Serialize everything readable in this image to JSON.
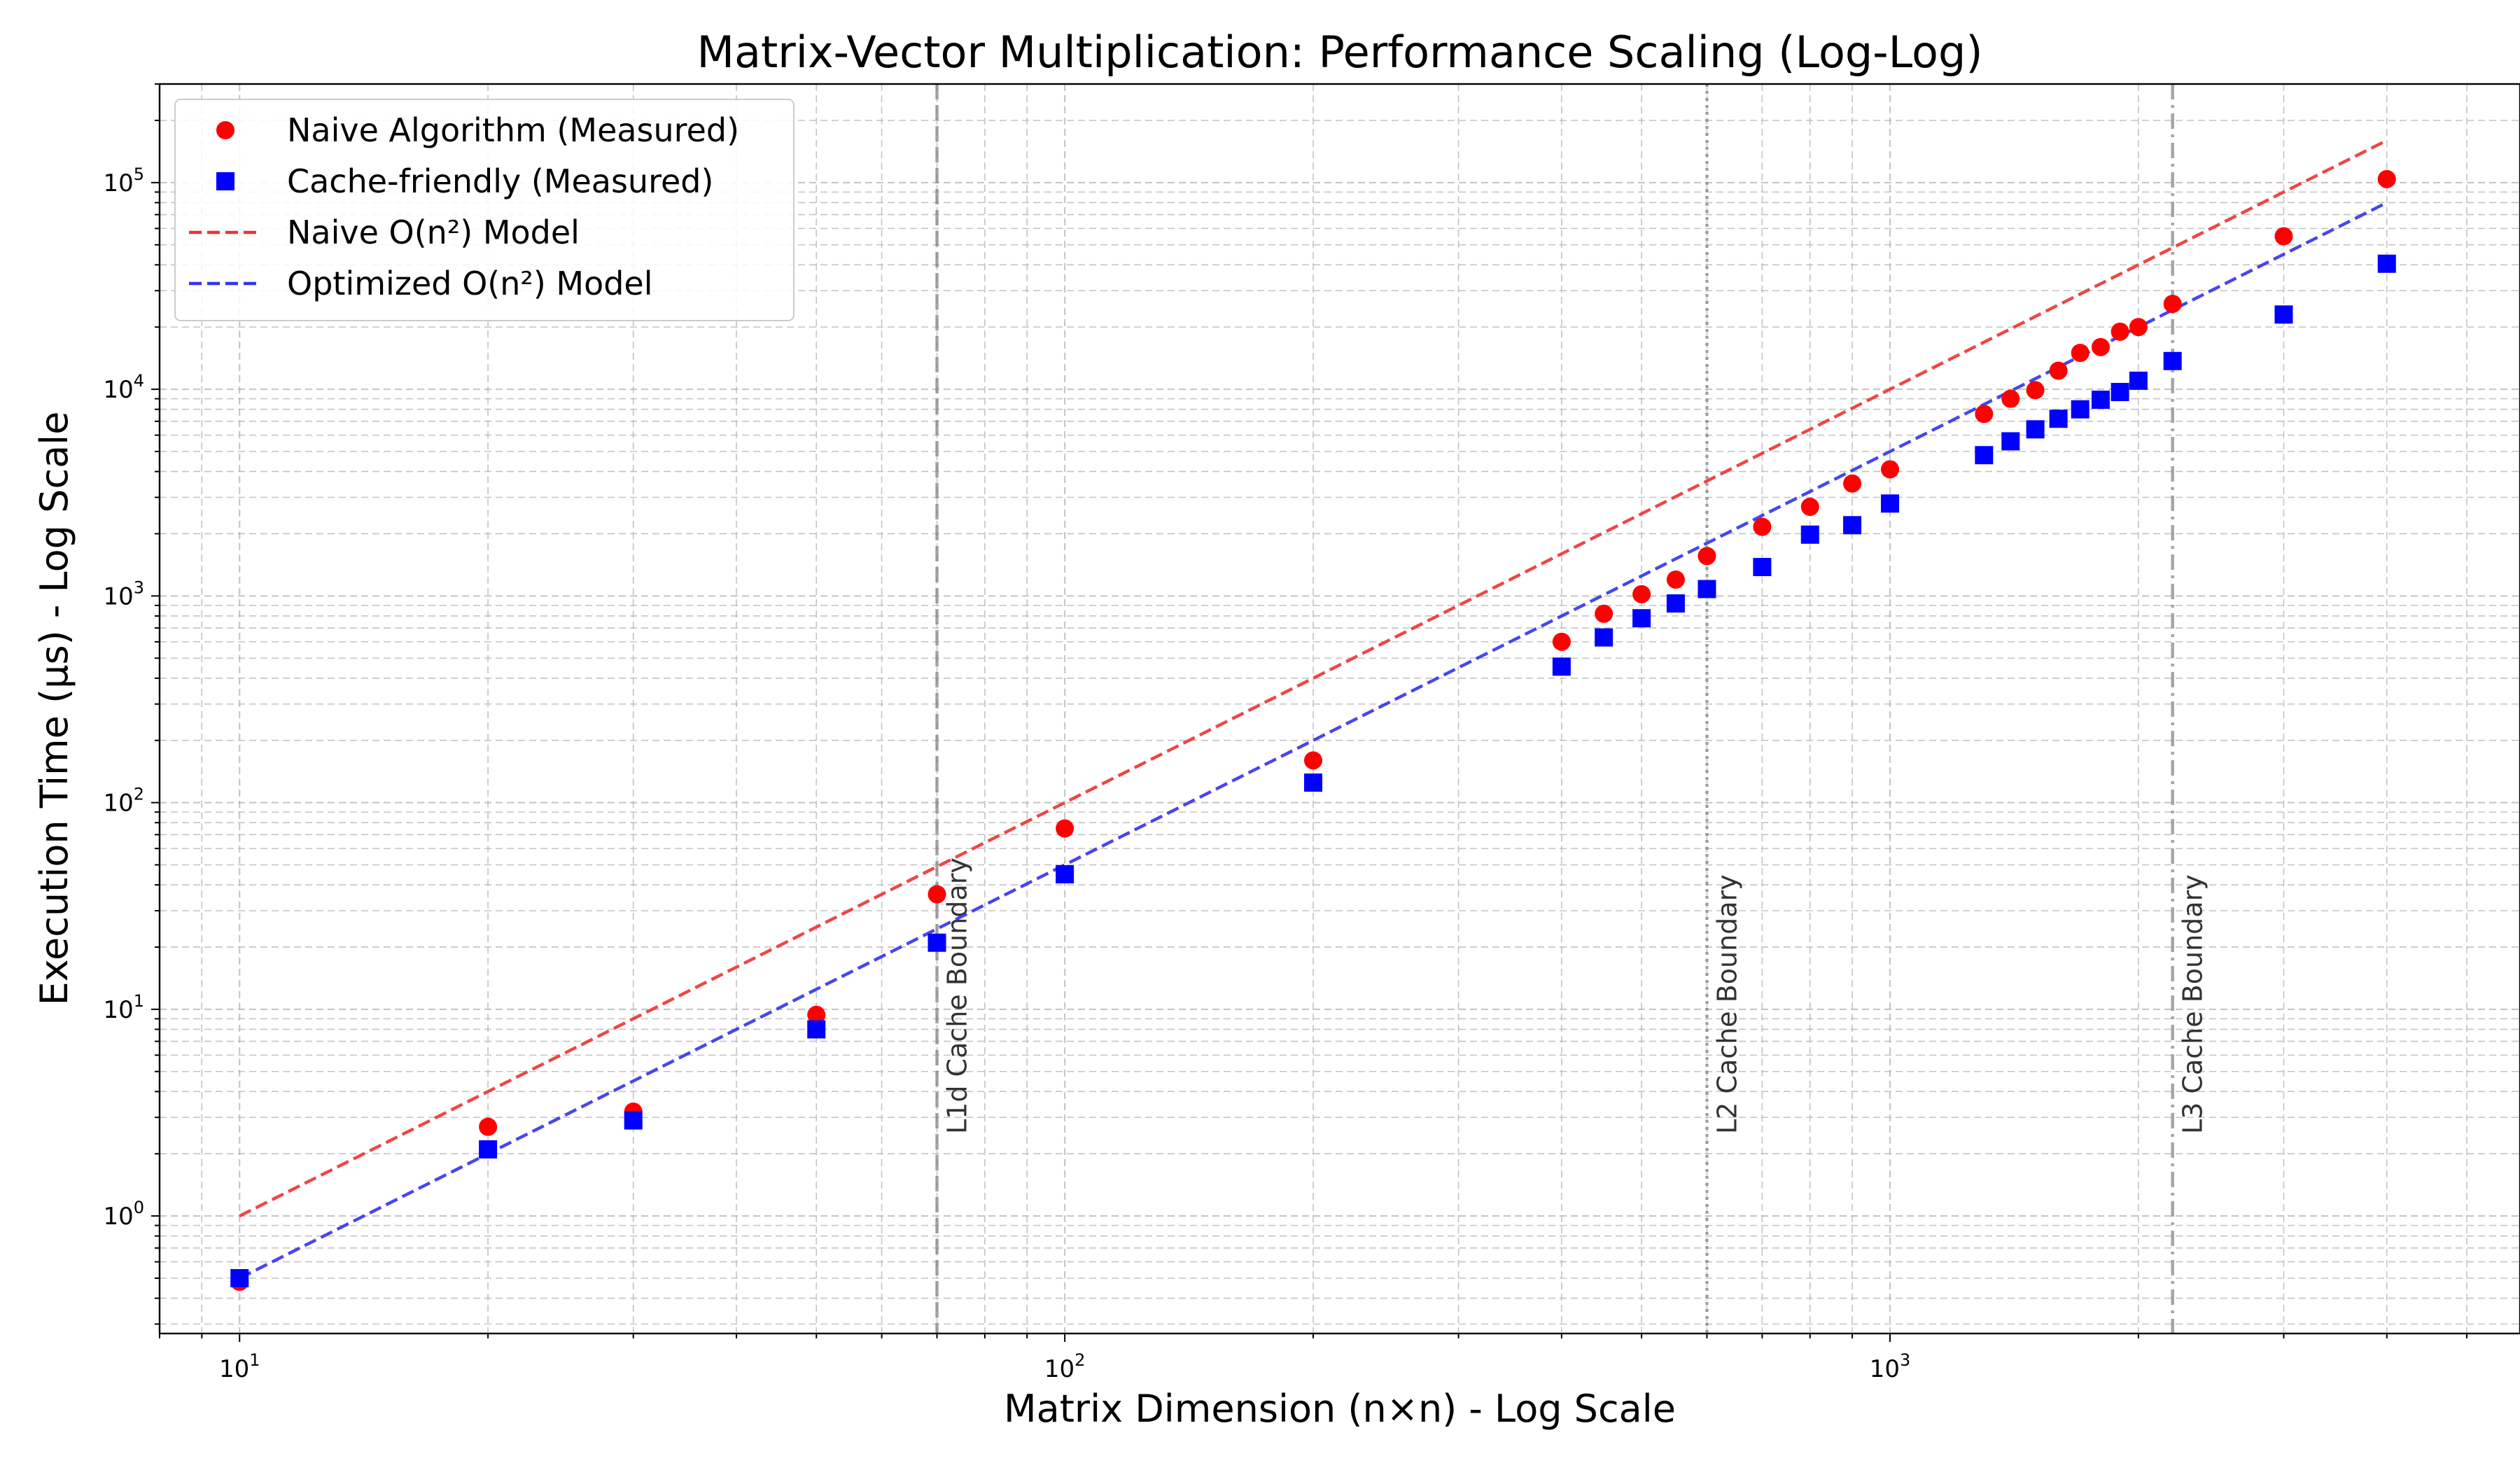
{
  "chart_data": {
    "type": "scatter",
    "title": "Matrix-Vector Multiplication: Performance Scaling (Log-Log)",
    "xlabel": "Matrix Dimension (n×n) - Log Scale",
    "ylabel": "Execution Time (μs) - Log Scale",
    "xscale": "log",
    "yscale": "log",
    "xlim": [
      8,
      5800
    ],
    "ylim": [
      0.27,
      300000
    ],
    "grid": true,
    "legend_position": "top-left",
    "x_ticks": [
      {
        "value": 10,
        "mantissa": "10",
        "exp": "1"
      },
      {
        "value": 100,
        "mantissa": "10",
        "exp": "2"
      },
      {
        "value": 1000,
        "mantissa": "10",
        "exp": "3"
      }
    ],
    "y_ticks": [
      {
        "value": 1,
        "mantissa": "10",
        "exp": "0"
      },
      {
        "value": 10,
        "mantissa": "10",
        "exp": "1"
      },
      {
        "value": 100,
        "mantissa": "10",
        "exp": "2"
      },
      {
        "value": 1000,
        "mantissa": "10",
        "exp": "3"
      },
      {
        "value": 10000,
        "mantissa": "10",
        "exp": "4"
      },
      {
        "value": 100000,
        "mantissa": "10",
        "exp": "5"
      }
    ],
    "series": [
      {
        "name": "Naive Algorithm (Measured)",
        "kind": "markers",
        "marker": "circle",
        "color": "#ff0000",
        "x": [
          10,
          20,
          30,
          50,
          70,
          100,
          200,
          400,
          450,
          500,
          550,
          600,
          700,
          800,
          900,
          1000,
          1300,
          1400,
          1500,
          1600,
          1700,
          1800,
          1900,
          2000,
          2200,
          3000,
          4000
        ],
        "y": [
          0.48,
          2.7,
          3.2,
          9.4,
          36,
          75,
          160,
          600,
          820,
          1020,
          1200,
          1560,
          2160,
          2700,
          3500,
          4100,
          7600,
          9000,
          9900,
          12300,
          15000,
          16000,
          19000,
          20000,
          25900,
          55000,
          104000
        ]
      },
      {
        "name": "Cache-friendly (Measured)",
        "kind": "markers",
        "marker": "square",
        "color": "#0000ff",
        "x": [
          10,
          20,
          30,
          50,
          70,
          100,
          200,
          400,
          450,
          500,
          550,
          600,
          700,
          800,
          900,
          1000,
          1300,
          1400,
          1500,
          1600,
          1700,
          1800,
          1900,
          2000,
          2200,
          3000,
          4000
        ],
        "y": [
          0.5,
          2.1,
          2.9,
          8.0,
          21,
          45,
          125,
          455,
          630,
          780,
          920,
          1080,
          1380,
          1980,
          2200,
          2800,
          4800,
          5600,
          6400,
          7200,
          8000,
          8900,
          9700,
          11000,
          13700,
          23000,
          40500
        ]
      },
      {
        "name": "Naive O(n²) Model",
        "kind": "line",
        "dash": "dashed",
        "color": "#ee3333",
        "x": [
          10,
          4000
        ],
        "y": [
          1.0,
          160000
        ]
      },
      {
        "name": "Optimized O(n²) Model",
        "kind": "line",
        "dash": "dashed",
        "color": "#3333ee",
        "x": [
          10,
          4000
        ],
        "y": [
          0.5,
          80000
        ]
      }
    ],
    "vertical_lines": [
      {
        "x": 70,
        "label": "L1d Cache Boundary",
        "style": "dashed"
      },
      {
        "x": 600,
        "label": "L2 Cache Boundary",
        "style": "dotted"
      },
      {
        "x": 2200,
        "label": "L3 Cache Boundary",
        "style": "dashdot"
      }
    ]
  }
}
